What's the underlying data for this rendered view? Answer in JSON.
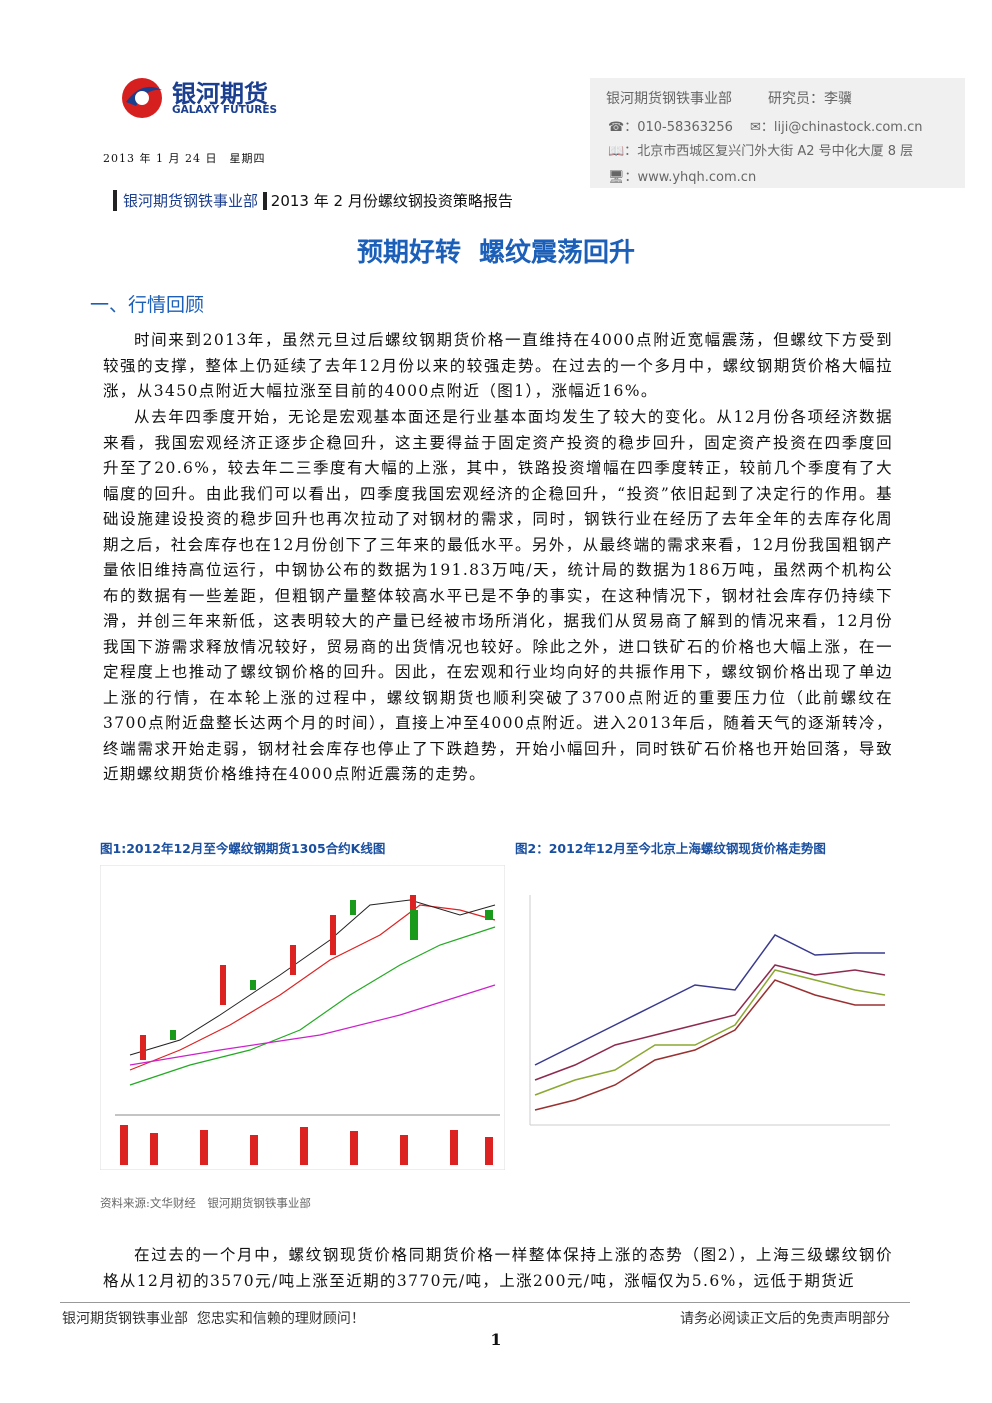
{
  "header": {
    "logo_cn": "银河期货",
    "logo_en": "GALAXY FUTURES",
    "date": "2013 年 1 月 24 日　星期四",
    "department": "银河期货钢铁事业部",
    "analyst": "研究员：李骥",
    "phone": "010-58363256",
    "email": "liji@chinastock.com.cn",
    "address": "北京市西城区复兴门外大街 A2 号中化大厦 8 层",
    "website": "www.yhqh.com.cn"
  },
  "banner": {
    "department": "银河期货钢铁事业部",
    "report": "2013 年 2 月份螺纹钢投资策略报告"
  },
  "title": "预期好转  螺纹震荡回升",
  "section": "一、行情回顾",
  "paragraphs": [
    "时间来到2013年，虽然元旦过后螺纹钢期货价格一直维持在4000点附近宽幅震荡，但螺纹下方受到较强的支撑，整体上仍延续了去年12月份以来的较强走势。在过去的一个多月中，螺纹钢期货价格大幅拉涨，从3450点附近大幅拉涨至目前的4000点附近（图1），涨幅近16%。",
    "从去年四季度开始，无论是宏观基本面还是行业基本面均发生了较大的变化。从12月份各项经济数据来看，我国宏观经济正逐步企稳回升，这主要得益于固定资产投资的稳步回升，固定资产投资在四季度回升至了20.6%，较去年二三季度有大幅的上涨，其中，铁路投资增幅在四季度转正，较前几个季度有了大幅度的回升。由此我们可以看出，四季度我国宏观经济的企稳回升，“投资”依旧起到了决定行的作用。基础设施建设投资的稳步回升也再次拉动了对钢材的需求，同时，钢铁行业在经历了去年全年的去库存化周期之后，社会库存也在12月份创下了三年来的最低水平。另外，从最终端的需求来看，12月份我国粗钢产量依旧维持高位运行，中钢协公布的数据为191.83万吨/天，统计局的数据为186万吨，虽然两个机构公布的数据有一些差距，但粗钢产量整体较高水平已是不争的事实，在这种情况下，钢材社会库存仍持续下滑，并创三年来新低，这表明较大的产量已经被市场所消化，据我们从贸易商了解到的情况来看，12月份我国下游需求释放情况较好，贸易商的出货情况也较好。除此之外，进口铁矿石的价格也大幅上涨，在一定程度上也推动了螺纹钢价格的回升。因此，在宏观和行业均向好的共振作用下，螺纹钢价格出现了单边上涨的行情，在本轮上涨的过程中，螺纹钢期货也顺利突破了3700点附近的重要压力位（此前螺纹在3700点附近盘整长达两个月的时间），直接上冲至4000点附近。进入2013年后，随着天气的逐渐转冷，终端需求开始走弱，钢材社会库存也停止了下跌趋势，开始小幅回升，同时铁矿石价格也开始回落，导致近期螺纹期货价格维持在4000点附近震荡的走势。",
    "在过去的一个月中，螺纹钢现货价格同期货价格一样整体保持上涨的态势（图2），上海三级螺纹钢价格从12月初的3570元/吨上涨至近期的3770元/吨，上涨200元/吨，涨幅仅为5.6%，远低于期货近"
  ],
  "figures": [
    {
      "caption": "图1:2012年12月至今螺纹钢期货1305合约K线图"
    },
    {
      "caption": "图2：2012年12月至今北京上海螺纹钢现货价格走势图"
    }
  ],
  "source": "资料来源:文华财经　银河期货钢铁事业部",
  "footer": {
    "left": "银河期货钢铁事业部  您忠实和信赖的理财顾问！",
    "right": "请务必阅读正文后的免责声明部分",
    "page": "1"
  }
}
